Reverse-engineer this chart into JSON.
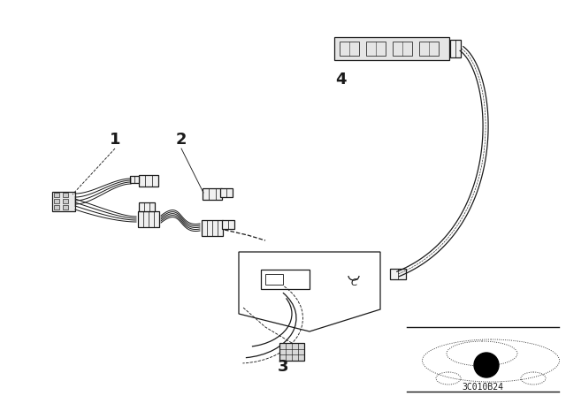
{
  "background_color": "#ffffff",
  "line_color": "#1a1a1a",
  "label_1": "1",
  "label_2": "2",
  "label_3": "3",
  "label_4": "4",
  "part_code": "3C010B24",
  "fig_width": 6.4,
  "fig_height": 4.48,
  "dpi": 100,
  "lw": 0.9
}
